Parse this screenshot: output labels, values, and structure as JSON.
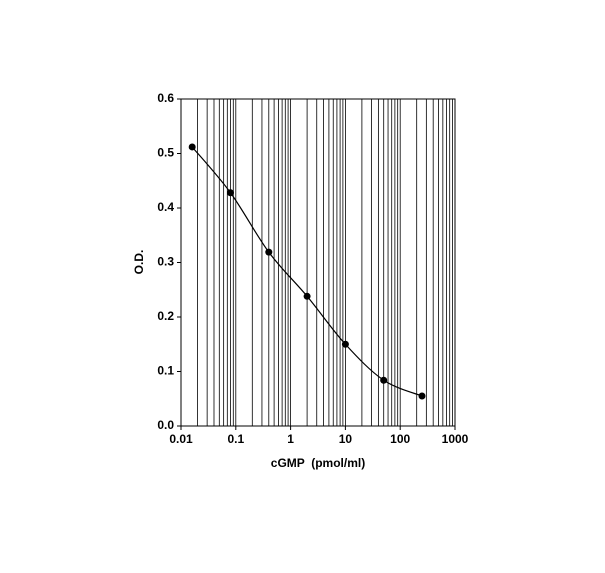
{
  "chart_data": {
    "type": "line",
    "x_label": "cGMP  (pmol/ml)",
    "y_label": "O.D.",
    "x": [
      0.016,
      0.08,
      0.4,
      2,
      10,
      50,
      250
    ],
    "series": [
      {
        "color": "#000000",
        "values": [
          0.512,
          0.428,
          0.319,
          0.238,
          0.15,
          0.084,
          0.055
        ]
      }
    ],
    "x_scale": "log",
    "xlim": [
      0.01,
      1000
    ],
    "xticks": [
      0.01,
      0.1,
      1,
      10,
      100,
      1000
    ],
    "ylim": [
      0,
      0.6
    ],
    "yticks": [
      {
        "value": 0,
        "label": "0.0"
      },
      0.1,
      0.2,
      0.3,
      0.4,
      0.5,
      0.6
    ],
    "grid": "x-minor",
    "smooth": true,
    "markers": true
  }
}
